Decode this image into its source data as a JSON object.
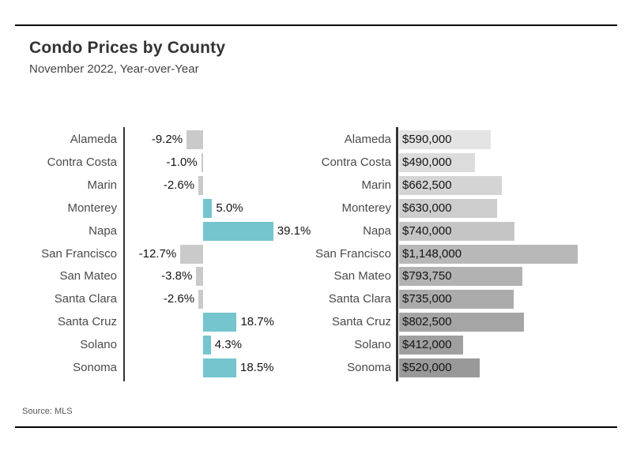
{
  "header": {
    "title": "Condo Prices by County",
    "subtitle": "November 2022, Year-over-Year"
  },
  "footer": {
    "source": "Source: MLS"
  },
  "colors": {
    "positive_bar": "#74c5cd",
    "negative_bar": "#cacaca",
    "axis": "#333333",
    "price_bars": [
      "#e4e4e4",
      "#dcdcdc",
      "#d4d4d4",
      "#cdcdcd",
      "#c5c5c5",
      "#b8b8b8",
      "#b2b2b2",
      "#ababab",
      "#a5a5a5",
      "#9f9f9f",
      "#999999"
    ]
  },
  "chart_data": [
    {
      "type": "bar",
      "orientation": "horizontal",
      "name": "yoy-percent-change",
      "categories": [
        "Alameda",
        "Contra Costa",
        "Marin",
        "Monterey",
        "Napa",
        "San Francisco",
        "San Mateo",
        "Santa Clara",
        "Santa Cruz",
        "Solano",
        "Sonoma"
      ],
      "values": [
        -9.2,
        -1.0,
        -2.6,
        5.0,
        39.1,
        -12.7,
        -3.8,
        -2.6,
        18.7,
        4.3,
        18.5
      ],
      "labels": [
        "-9.2%",
        "-1.0%",
        "-2.6%",
        "5.0%",
        "39.1%",
        "-12.7%",
        "-3.8%",
        "-2.6%",
        "18.7%",
        "4.3%",
        "18.5%"
      ],
      "unit": "percent",
      "value_range": [
        -12.7,
        39.1
      ],
      "grid": false,
      "legend": "none"
    },
    {
      "type": "bar",
      "orientation": "horizontal",
      "name": "median-price",
      "categories": [
        "Alameda",
        "Contra Costa",
        "Marin",
        "Monterey",
        "Napa",
        "San Francisco",
        "San Mateo",
        "Santa Clara",
        "Santa Cruz",
        "Solano",
        "Sonoma"
      ],
      "values": [
        590000,
        490000,
        662500,
        630000,
        740000,
        1148000,
        793750,
        735000,
        802500,
        412000,
        520000
      ],
      "labels": [
        "$590,000",
        "$490,000",
        "$662,500",
        "$630,000",
        "$740,000",
        "$1,148,000",
        "$793,750",
        "$735,000",
        "$802,500",
        "$412,000",
        "$520,000"
      ],
      "unit": "USD",
      "value_range": [
        0,
        1148000
      ],
      "grid": false,
      "legend": "none"
    }
  ]
}
